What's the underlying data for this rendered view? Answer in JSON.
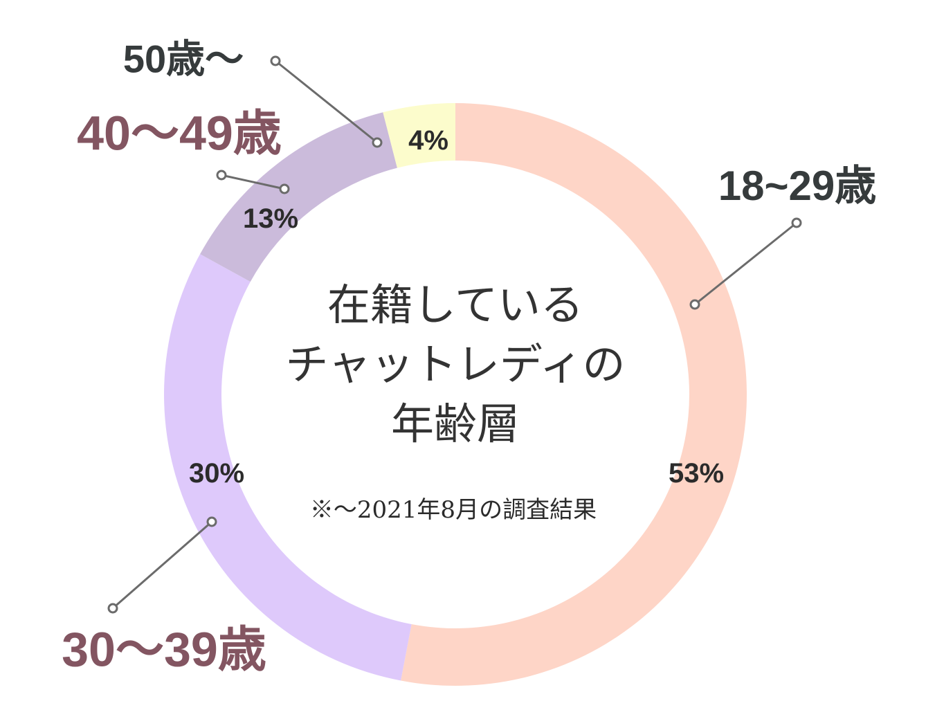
{
  "chart_data": {
    "type": "pie",
    "style": "donut",
    "title_lines": [
      "在籍している",
      "チャットレディの",
      "年齢層"
    ],
    "note": "※～2021年8月の調査結果",
    "slices": [
      {
        "label": "18~29歳",
        "value": 53,
        "value_label": "53%",
        "color": "#fed5c7",
        "label_color": "#363b3c"
      },
      {
        "label": "30〜39歳",
        "value": 30,
        "value_label": "30%",
        "color": "#dec9fb",
        "label_color": "#835561"
      },
      {
        "label": "40〜49歳",
        "value": 13,
        "value_label": "13%",
        "color": "#cbbbdb",
        "label_color": "#835561"
      },
      {
        "label": "50歳〜",
        "value": 4,
        "value_label": "4%",
        "color": "#fcfccc",
        "label_color": "#363b3c"
      }
    ],
    "start": "top",
    "direction": "clockwise"
  }
}
